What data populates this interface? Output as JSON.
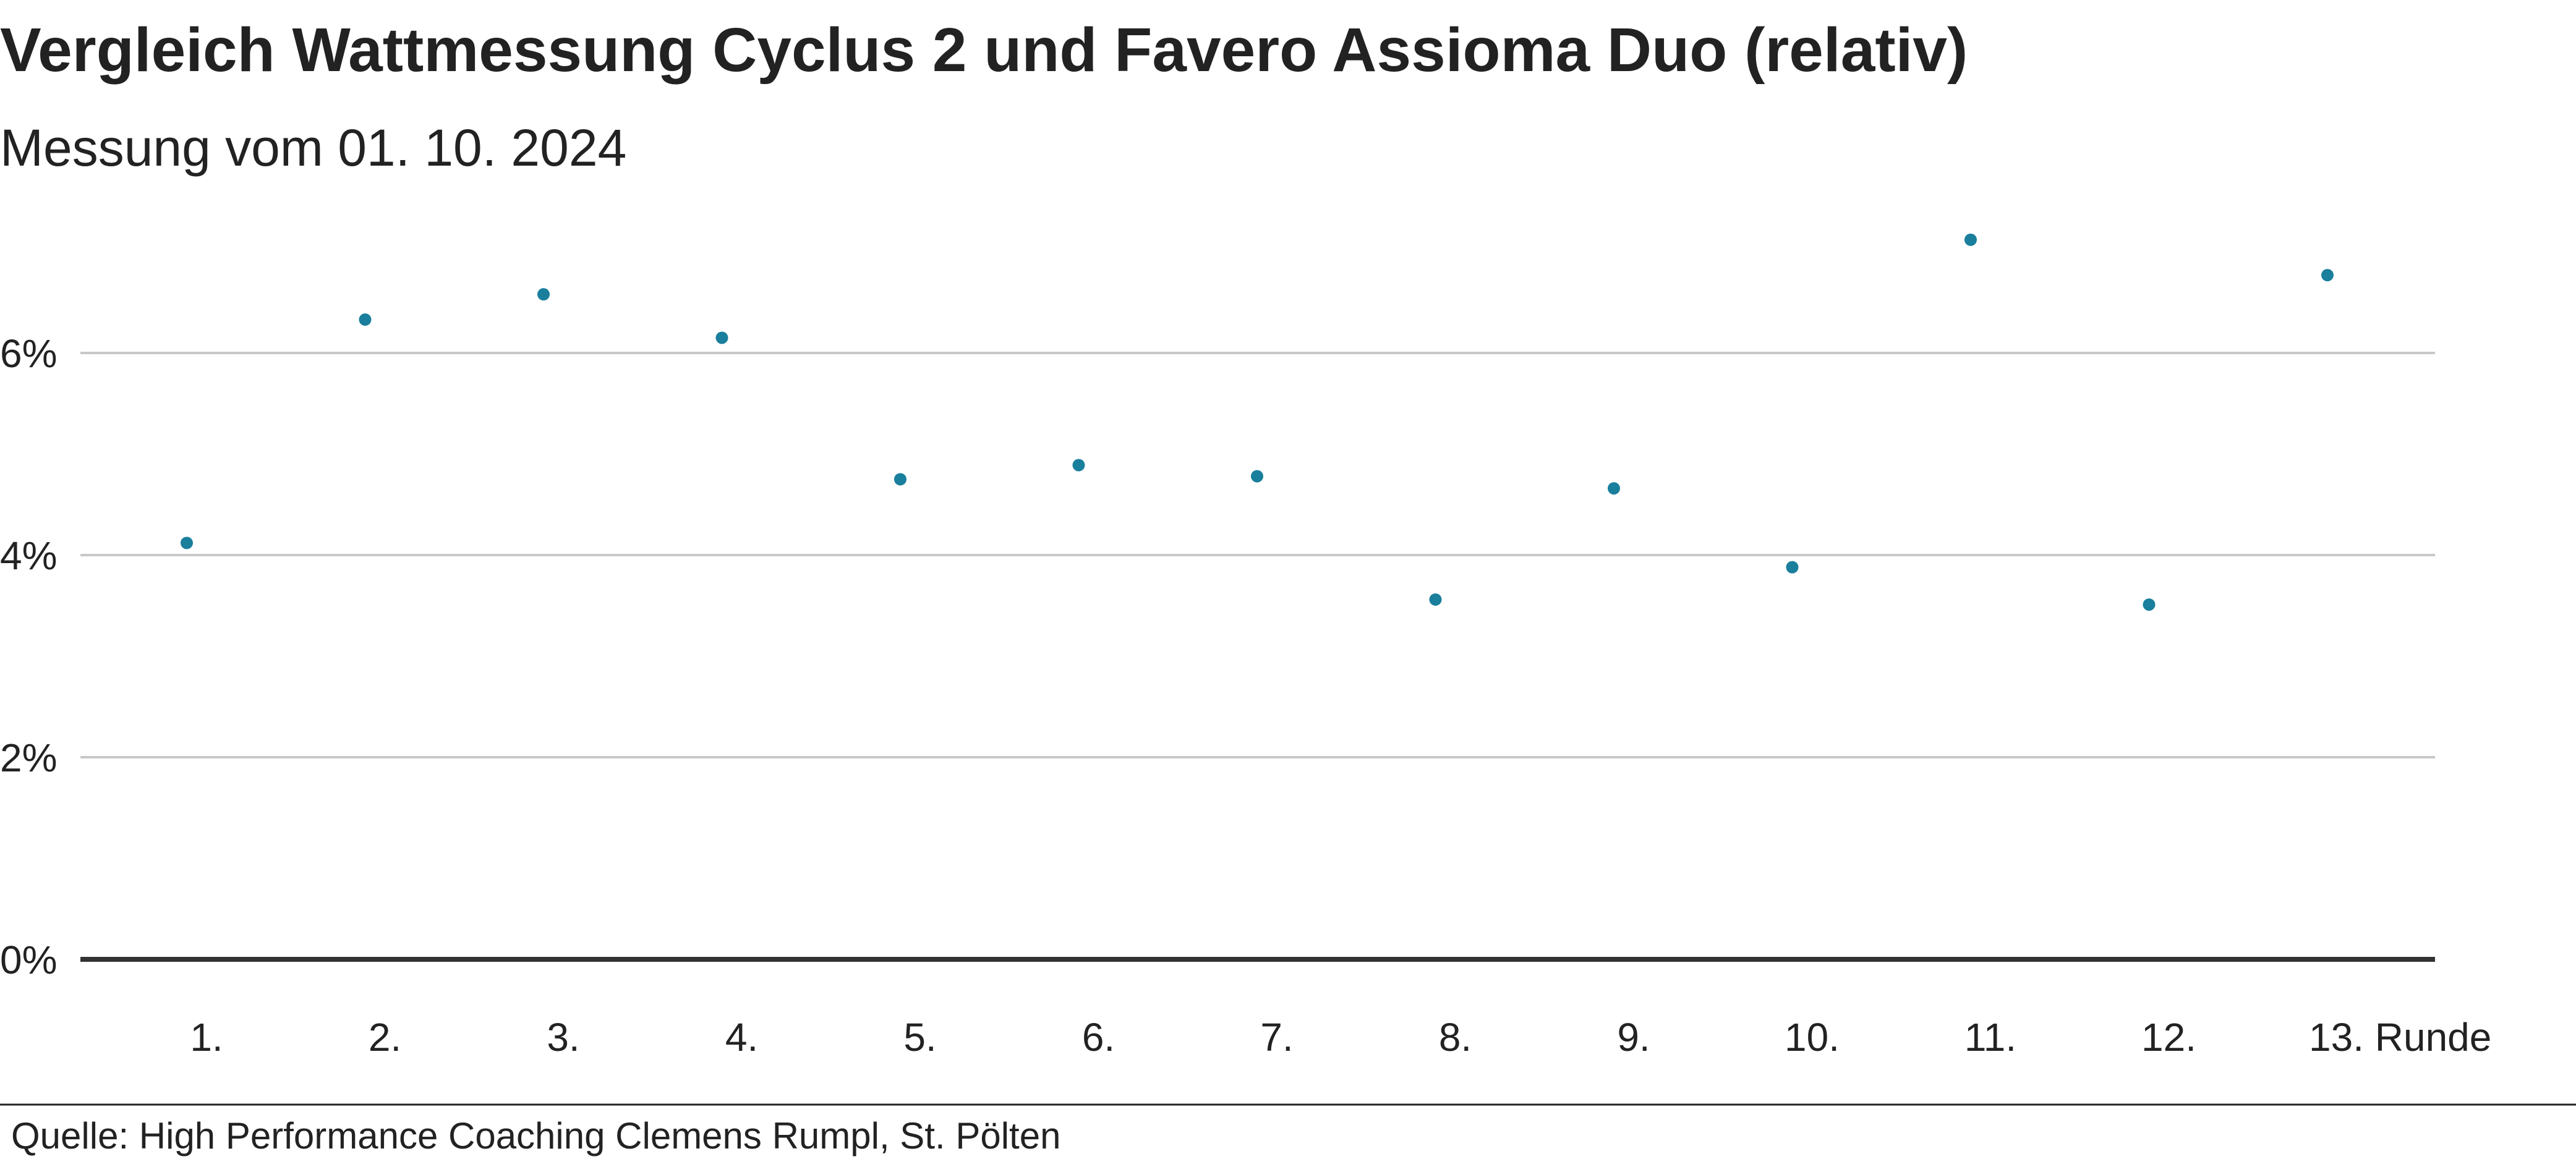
{
  "chart_data": {
    "type": "scatter",
    "title": "Vergleich Wattmessung Cyclus 2 und Favero Assioma Duo (relativ)",
    "subtitle": "Messung vom 01. 10. 2024",
    "source": "Quelle: High Performance Coaching Clemens Rumpl, St. Pölten",
    "xlabel": "Runde",
    "ylabel": "",
    "categories": [
      "1.",
      "2.",
      "3.",
      "4.",
      "5.",
      "6.",
      "7.",
      "8.",
      "9.",
      "10.",
      "11.",
      "12.",
      "13."
    ],
    "values": [
      4.12,
      6.33,
      6.58,
      6.15,
      4.75,
      4.89,
      4.78,
      3.56,
      4.66,
      3.88,
      7.12,
      3.51,
      6.77
    ],
    "unit": "%",
    "ylim": [
      0,
      7.5
    ],
    "yticks": [
      {
        "value": 0,
        "label": "0%"
      },
      {
        "value": 2,
        "label": "2%"
      },
      {
        "value": 4,
        "label": "4%"
      },
      {
        "value": 6,
        "label": "6%"
      }
    ],
    "grid": true,
    "legend": "none",
    "colors": {
      "point": "#1a7f9c",
      "grid": "#c8c8c8",
      "baseline": "#333333",
      "text": "#222222"
    }
  }
}
